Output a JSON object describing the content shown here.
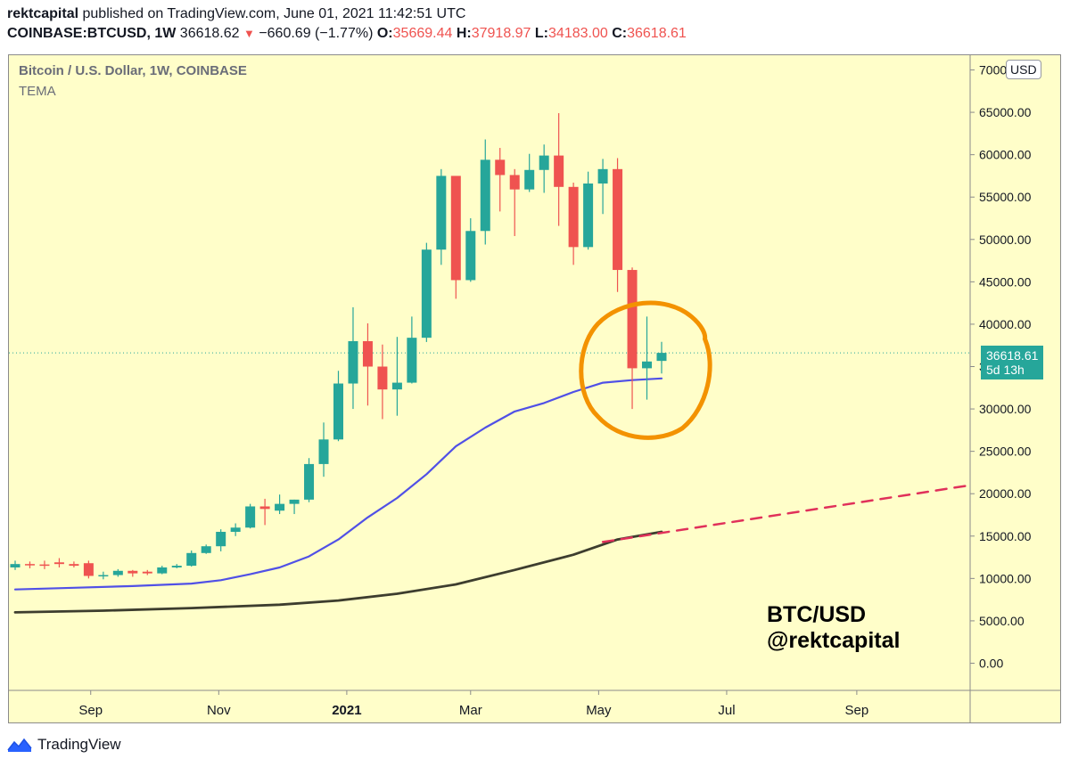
{
  "header": {
    "author": "rektcapital",
    "published_text": " published on TradingView.com, June 01, 2021 11:42:51 UTC",
    "symbol_line": "COINBASE:BTCUSD, 1W",
    "last_price": "36618.62",
    "change": "−660.69 (−1.77%)",
    "o_label": "O:",
    "o_value": "35669.44",
    "h_label": "H:",
    "h_value": "37918.97",
    "l_label": "L:",
    "l_value": "34183.00",
    "c_label": "C:",
    "c_value": "36618.61"
  },
  "legend": {
    "title": "Bitcoin / U.S. Dollar, 1W, COINBASE",
    "indicator": "TEMA"
  },
  "currency_button": "USD",
  "price_tag": {
    "price": "36618.61",
    "countdown": "5d 13h"
  },
  "watermark": {
    "pair": "BTC/USD",
    "handle": "@rektcapital"
  },
  "footer": {
    "brand": "TradingView"
  },
  "colors": {
    "up": "#26a69a",
    "down": "#ef5350",
    "tema": "#5050e6",
    "long_ma": "#3d3d2e",
    "projection": "#e0305a",
    "circle": "#f39200",
    "background": "#fffec9"
  },
  "chart_data": {
    "type": "candlestick",
    "title": "Bitcoin / U.S. Dollar, 1W, COINBASE",
    "y_axis": {
      "min": -1000,
      "max": 71000,
      "ticks": [
        "0.00",
        "5000.00",
        "10000.00",
        "15000.00",
        "20000.00",
        "25000.00",
        "30000.00",
        "35000.00",
        "40000.00",
        "45000.00",
        "50000.00",
        "55000.00",
        "60000.00",
        "65000.00",
        "70000.00"
      ]
    },
    "x_axis": {
      "start": "2020-07-27",
      "end": "2021-10-25",
      "labels": [
        {
          "text": "Sep",
          "date": "2020-09-01"
        },
        {
          "text": "Nov",
          "date": "2020-11-01"
        },
        {
          "text": "2021",
          "date": "2021-01-01",
          "bold": true
        },
        {
          "text": "Mar",
          "date": "2021-03-01"
        },
        {
          "text": "May",
          "date": "2021-05-01"
        },
        {
          "text": "Jul",
          "date": "2021-07-01"
        },
        {
          "text": "Sep",
          "date": "2021-09-01"
        }
      ]
    },
    "candles": [
      {
        "date": "2020-07-27",
        "o": 11300,
        "h": 12100,
        "l": 11000,
        "c": 11700
      },
      {
        "date": "2020-08-03",
        "o": 11700,
        "h": 12000,
        "l": 11200,
        "c": 11650
      },
      {
        "date": "2020-08-10",
        "o": 11650,
        "h": 12100,
        "l": 11100,
        "c": 11500
      },
      {
        "date": "2020-08-17",
        "o": 11900,
        "h": 12400,
        "l": 11300,
        "c": 11700
      },
      {
        "date": "2020-08-24",
        "o": 11700,
        "h": 12000,
        "l": 11300,
        "c": 11500
      },
      {
        "date": "2020-08-31",
        "o": 11800,
        "h": 12100,
        "l": 10000,
        "c": 10300
      },
      {
        "date": "2020-09-07",
        "o": 10300,
        "h": 10800,
        "l": 9900,
        "c": 10400
      },
      {
        "date": "2020-09-14",
        "o": 10400,
        "h": 11100,
        "l": 10200,
        "c": 10900
      },
      {
        "date": "2020-09-21",
        "o": 10900,
        "h": 11000,
        "l": 10200,
        "c": 10600
      },
      {
        "date": "2020-09-28",
        "o": 10800,
        "h": 11000,
        "l": 10400,
        "c": 10600
      },
      {
        "date": "2020-10-05",
        "o": 10600,
        "h": 11500,
        "l": 10500,
        "c": 11300
      },
      {
        "date": "2020-10-12",
        "o": 11300,
        "h": 11700,
        "l": 11200,
        "c": 11500
      },
      {
        "date": "2020-10-19",
        "o": 11500,
        "h": 13300,
        "l": 11400,
        "c": 13000
      },
      {
        "date": "2020-10-26",
        "o": 13000,
        "h": 14000,
        "l": 12900,
        "c": 13800
      },
      {
        "date": "2020-11-02",
        "o": 13800,
        "h": 15800,
        "l": 13200,
        "c": 15500
      },
      {
        "date": "2020-11-09",
        "o": 15500,
        "h": 16500,
        "l": 15000,
        "c": 16000
      },
      {
        "date": "2020-11-16",
        "o": 16000,
        "h": 18800,
        "l": 15900,
        "c": 18500
      },
      {
        "date": "2020-11-23",
        "o": 18500,
        "h": 19400,
        "l": 16300,
        "c": 18200
      },
      {
        "date": "2020-11-30",
        "o": 18000,
        "h": 19900,
        "l": 17600,
        "c": 18800
      },
      {
        "date": "2020-12-07",
        "o": 18800,
        "h": 19300,
        "l": 17600,
        "c": 19300
      },
      {
        "date": "2020-12-14",
        "o": 19300,
        "h": 24200,
        "l": 19000,
        "c": 23500
      },
      {
        "date": "2020-12-21",
        "o": 23500,
        "h": 28400,
        "l": 22000,
        "c": 26400
      },
      {
        "date": "2020-12-28",
        "o": 26400,
        "h": 34500,
        "l": 26200,
        "c": 33000
      },
      {
        "date": "2021-01-04",
        "o": 33000,
        "h": 42000,
        "l": 30000,
        "c": 38000
      },
      {
        "date": "2021-01-11",
        "o": 38000,
        "h": 40100,
        "l": 30400,
        "c": 35000
      },
      {
        "date": "2021-01-18",
        "o": 35000,
        "h": 37600,
        "l": 28800,
        "c": 32300
      },
      {
        "date": "2021-01-25",
        "o": 32300,
        "h": 38500,
        "l": 29200,
        "c": 33100
      },
      {
        "date": "2021-02-01",
        "o": 33100,
        "h": 40900,
        "l": 33000,
        "c": 38400
      },
      {
        "date": "2021-02-08",
        "o": 38400,
        "h": 49600,
        "l": 37900,
        "c": 48800
      },
      {
        "date": "2021-02-15",
        "o": 48800,
        "h": 58300,
        "l": 47000,
        "c": 57500
      },
      {
        "date": "2021-02-22",
        "o": 57500,
        "h": 57500,
        "l": 43000,
        "c": 45200
      },
      {
        "date": "2021-03-01",
        "o": 45200,
        "h": 52500,
        "l": 45000,
        "c": 51000
      },
      {
        "date": "2021-03-08",
        "o": 51000,
        "h": 61800,
        "l": 49400,
        "c": 59400
      },
      {
        "date": "2021-03-15",
        "o": 59400,
        "h": 60800,
        "l": 53300,
        "c": 57600
      },
      {
        "date": "2021-03-22",
        "o": 57600,
        "h": 58300,
        "l": 50400,
        "c": 55900
      },
      {
        "date": "2021-03-29",
        "o": 55900,
        "h": 60100,
        "l": 55600,
        "c": 58200
      },
      {
        "date": "2021-04-05",
        "o": 58200,
        "h": 61200,
        "l": 55500,
        "c": 59900
      },
      {
        "date": "2021-04-12",
        "o": 59900,
        "h": 64900,
        "l": 51600,
        "c": 56200
      },
      {
        "date": "2021-04-19",
        "o": 56200,
        "h": 56700,
        "l": 47000,
        "c": 49100
      },
      {
        "date": "2021-04-26",
        "o": 49100,
        "h": 58000,
        "l": 48800,
        "c": 56600
      },
      {
        "date": "2021-05-03",
        "o": 56600,
        "h": 59500,
        "l": 53000,
        "c": 58300
      },
      {
        "date": "2021-05-10",
        "o": 58300,
        "h": 59600,
        "l": 43800,
        "c": 46400
      },
      {
        "date": "2021-05-17",
        "o": 46400,
        "h": 46700,
        "l": 30000,
        "c": 34800
      },
      {
        "date": "2021-05-24",
        "o": 34800,
        "h": 40900,
        "l": 31100,
        "c": 35600
      },
      {
        "date": "2021-05-31",
        "o": 35669.44,
        "h": 37918.97,
        "l": 34183.0,
        "c": 36618.61
      }
    ],
    "current_price": 36618.61,
    "series": [
      {
        "name": "TEMA",
        "points": [
          [
            "2020-07-27",
            8700
          ],
          [
            "2020-08-24",
            8900
          ],
          [
            "2020-09-21",
            9100
          ],
          [
            "2020-10-19",
            9400
          ],
          [
            "2020-11-02",
            9800
          ],
          [
            "2020-11-16",
            10500
          ],
          [
            "2020-11-30",
            11300
          ],
          [
            "2020-12-14",
            12600
          ],
          [
            "2020-12-28",
            14600
          ],
          [
            "2021-01-11",
            17200
          ],
          [
            "2021-01-25",
            19500
          ],
          [
            "2021-02-08",
            22300
          ],
          [
            "2021-02-22",
            25600
          ],
          [
            "2021-03-08",
            27800
          ],
          [
            "2021-03-22",
            29700
          ],
          [
            "2021-04-05",
            30700
          ],
          [
            "2021-04-19",
            32000
          ],
          [
            "2021-05-03",
            33100
          ],
          [
            "2021-05-17",
            33400
          ],
          [
            "2021-05-31",
            33600
          ]
        ]
      },
      {
        "name": "long moving average",
        "points": [
          [
            "2020-07-27",
            6000
          ],
          [
            "2020-09-07",
            6200
          ],
          [
            "2020-10-19",
            6500
          ],
          [
            "2020-11-30",
            6900
          ],
          [
            "2020-12-28",
            7400
          ],
          [
            "2021-01-25",
            8200
          ],
          [
            "2021-02-22",
            9300
          ],
          [
            "2021-03-22",
            11000
          ],
          [
            "2021-04-19",
            12800
          ],
          [
            "2021-05-10",
            14600
          ],
          [
            "2021-05-31",
            15500
          ]
        ]
      },
      {
        "name": "projection",
        "dashed": true,
        "points": [
          [
            "2021-05-03",
            14300
          ],
          [
            "2021-10-25",
            21000
          ]
        ]
      }
    ],
    "annotations": [
      {
        "type": "circle",
        "center_date": "2021-05-24",
        "center_value": 35000,
        "note": "hand-drawn orange circle around recent candles"
      }
    ]
  }
}
